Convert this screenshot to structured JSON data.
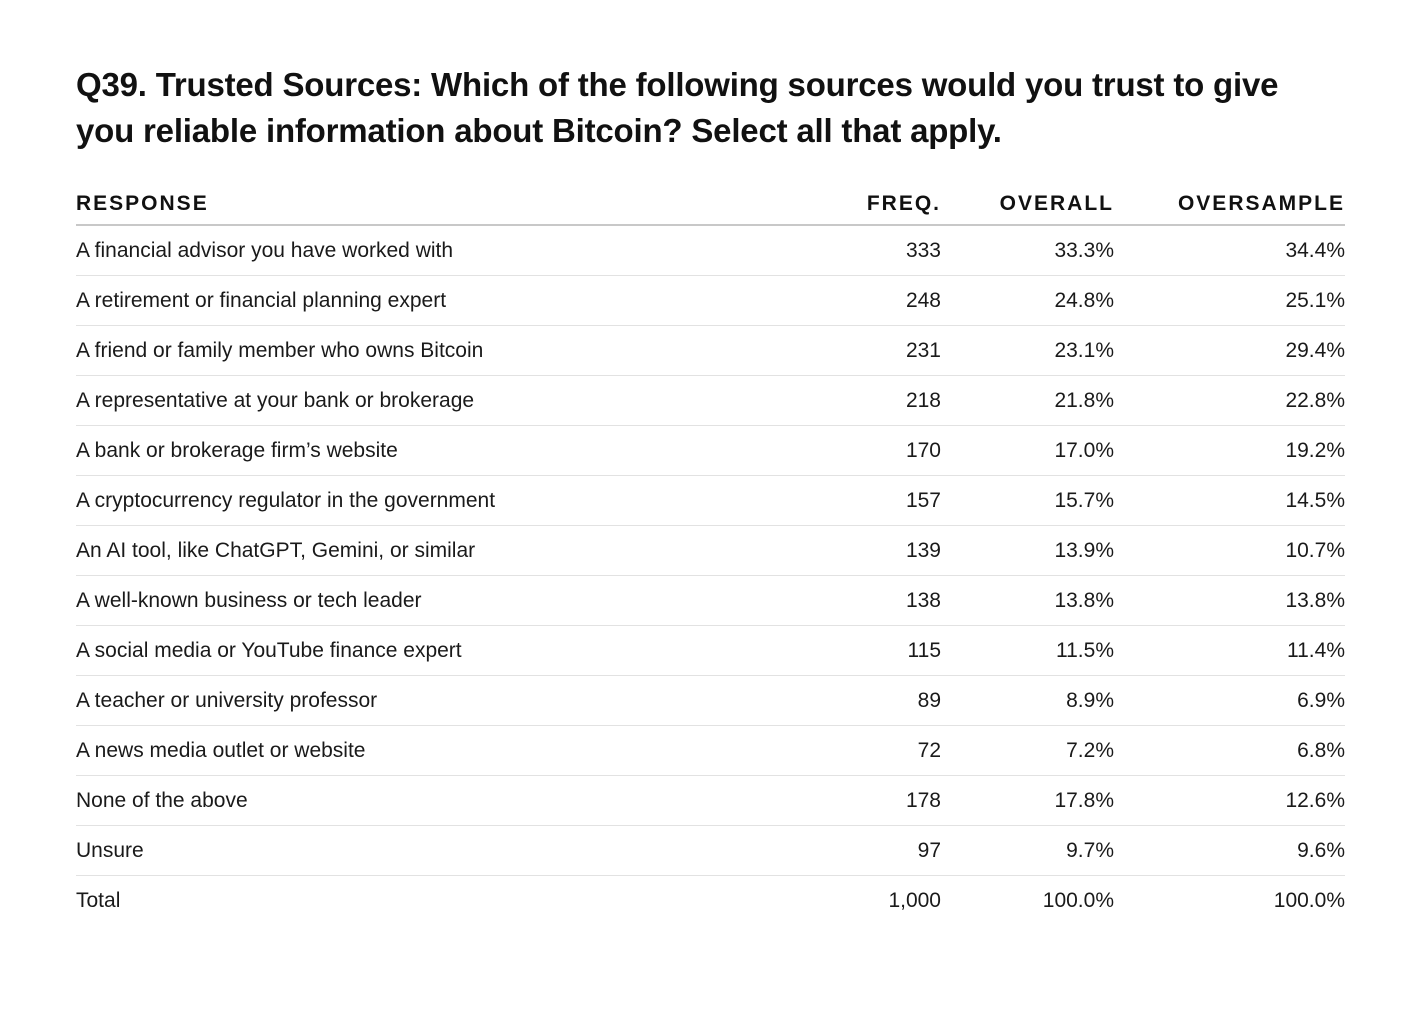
{
  "title": {
    "lead": "Q39. Trusted Sources:",
    "question": " Which of the following sources would you trust to give you reliable information about Bitcoin? Select all that apply."
  },
  "table": {
    "headers": {
      "response": "RESPONSE",
      "freq": "FREQ.",
      "overall": "OVERALL",
      "oversample": "OVERSAMPLE"
    },
    "rows": [
      {
        "response": "A financial advisor you have worked with",
        "freq": "333",
        "overall": "33.3%",
        "oversample": "34.4%"
      },
      {
        "response": "A retirement or financial planning expert",
        "freq": "248",
        "overall": "24.8%",
        "oversample": "25.1%"
      },
      {
        "response": "A friend or family member who owns Bitcoin",
        "freq": "231",
        "overall": "23.1%",
        "oversample": "29.4%"
      },
      {
        "response": "A representative at your bank or brokerage",
        "freq": "218",
        "overall": "21.8%",
        "oversample": "22.8%"
      },
      {
        "response": "A bank or brokerage firm’s website",
        "freq": "170",
        "overall": "17.0%",
        "oversample": "19.2%"
      },
      {
        "response": "A cryptocurrency regulator in the government",
        "freq": "157",
        "overall": "15.7%",
        "oversample": "14.5%"
      },
      {
        "response": "An AI tool, like ChatGPT, Gemini, or similar",
        "freq": "139",
        "overall": "13.9%",
        "oversample": "10.7%"
      },
      {
        "response": "A well-known business or tech leader",
        "freq": "138",
        "overall": "13.8%",
        "oversample": "13.8%"
      },
      {
        "response": "A social media or YouTube finance expert",
        "freq": "115",
        "overall": "11.5%",
        "oversample": "11.4%"
      },
      {
        "response": "A teacher or university professor",
        "freq": "89",
        "overall": "8.9%",
        "oversample": "6.9%"
      },
      {
        "response": "A news media outlet or website",
        "freq": "72",
        "overall": "7.2%",
        "oversample": "6.8%"
      },
      {
        "response": "None of the above",
        "freq": "178",
        "overall": "17.8%",
        "oversample": "12.6%"
      },
      {
        "response": "Unsure",
        "freq": "97",
        "overall": "9.7%",
        "oversample": "9.6%"
      },
      {
        "response": "Total",
        "freq": "1,000",
        "overall": "100.0%",
        "oversample": "100.0%"
      }
    ]
  }
}
